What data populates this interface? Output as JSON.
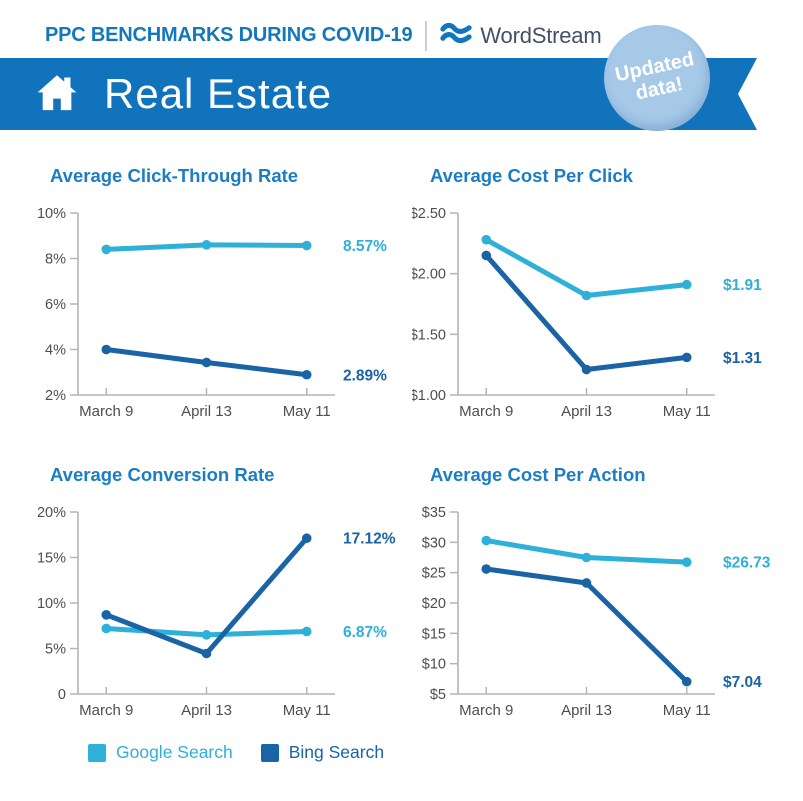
{
  "header": {
    "kicker": "PPC BENCHMARKS DURING COVID-19",
    "brand": "WordStream",
    "banner": {
      "title": "Real Estate"
    },
    "badge": {
      "line1": "Updated",
      "line2": "data!"
    }
  },
  "colors": {
    "google": "#2fb0d9",
    "bing": "#1a63a5",
    "kicker_blue": "#1377bd",
    "banner_blue": "#1173bb",
    "chart_title_blue": "#1b7dc4",
    "badge_bg": "#a6c9e8",
    "axis": "#b0b6bb",
    "tick_text": "#4d4e50",
    "wordmark": "#445064"
  },
  "legend": {
    "items": [
      {
        "label": "Google Search",
        "series": "google"
      },
      {
        "label": "Bing Search",
        "series": "bing"
      }
    ]
  },
  "chart_data": [
    {
      "type": "line",
      "title": "Average Click-Through Rate",
      "categories": [
        "March 9",
        "April 13",
        "May 11"
      ],
      "ylim": [
        2,
        10
      ],
      "yticks": [
        {
          "v": 10,
          "label": "10%"
        },
        {
          "v": 8,
          "label": "8%"
        },
        {
          "v": 6,
          "label": "6%"
        },
        {
          "v": 4,
          "label": "4%"
        },
        {
          "v": 2,
          "label": "2%"
        }
      ],
      "grid": false,
      "legend_position": "bottom-shared",
      "series": [
        {
          "name": "Google Search",
          "color_key": "google",
          "values": [
            8.4,
            8.6,
            8.57
          ],
          "end_label": "8.57%"
        },
        {
          "name": "Bing Search",
          "color_key": "bing",
          "values": [
            4.0,
            3.43,
            2.89
          ],
          "end_label": "2.89%"
        }
      ]
    },
    {
      "type": "line",
      "title": "Average Cost Per Click",
      "categories": [
        "March 9",
        "April 13",
        "May 11"
      ],
      "ylim": [
        1.0,
        2.5
      ],
      "yticks": [
        {
          "v": 2.5,
          "label": "$2.50"
        },
        {
          "v": 2.0,
          "label": "$2.00"
        },
        {
          "v": 1.5,
          "label": "$1.50"
        },
        {
          "v": 1.0,
          "label": "$1.00"
        }
      ],
      "grid": false,
      "legend_position": "bottom-shared",
      "series": [
        {
          "name": "Google Search",
          "color_key": "google",
          "values": [
            2.28,
            1.82,
            1.91
          ],
          "end_label": "$1.91"
        },
        {
          "name": "Bing Search",
          "color_key": "bing",
          "values": [
            2.15,
            1.21,
            1.31
          ],
          "end_label": "$1.31"
        }
      ]
    },
    {
      "type": "line",
      "title": "Average Conversion Rate",
      "categories": [
        "March 9",
        "April 13",
        "May 11"
      ],
      "ylim": [
        0,
        20
      ],
      "yticks": [
        {
          "v": 20,
          "label": "20%"
        },
        {
          "v": 15,
          "label": "15%"
        },
        {
          "v": 10,
          "label": "10%"
        },
        {
          "v": 5,
          "label": "5%"
        },
        {
          "v": 0,
          "label": "0"
        }
      ],
      "grid": false,
      "legend_position": "bottom-shared",
      "series": [
        {
          "name": "Google Search",
          "color_key": "google",
          "values": [
            7.2,
            6.5,
            6.87
          ],
          "end_label": "6.87%"
        },
        {
          "name": "Bing Search",
          "color_key": "bing",
          "values": [
            8.7,
            4.45,
            17.12
          ],
          "end_label": "17.12%"
        }
      ]
    },
    {
      "type": "line",
      "title": "Average Cost Per Action",
      "categories": [
        "March 9",
        "April 13",
        "May 11"
      ],
      "ylim": [
        5,
        35
      ],
      "yticks": [
        {
          "v": 35,
          "label": "$35"
        },
        {
          "v": 30,
          "label": "$30"
        },
        {
          "v": 25,
          "label": "$25"
        },
        {
          "v": 20,
          "label": "$20"
        },
        {
          "v": 15,
          "label": "$15"
        },
        {
          "v": 10,
          "label": "$10"
        },
        {
          "v": 5,
          "label": "$5"
        }
      ],
      "grid": false,
      "legend_position": "bottom-shared",
      "series": [
        {
          "name": "Google Search",
          "color_key": "google",
          "values": [
            30.3,
            27.5,
            26.73
          ],
          "end_label": "$26.73"
        },
        {
          "name": "Bing Search",
          "color_key": "bing",
          "values": [
            25.6,
            23.3,
            7.04
          ],
          "end_label": "$7.04"
        }
      ]
    }
  ]
}
